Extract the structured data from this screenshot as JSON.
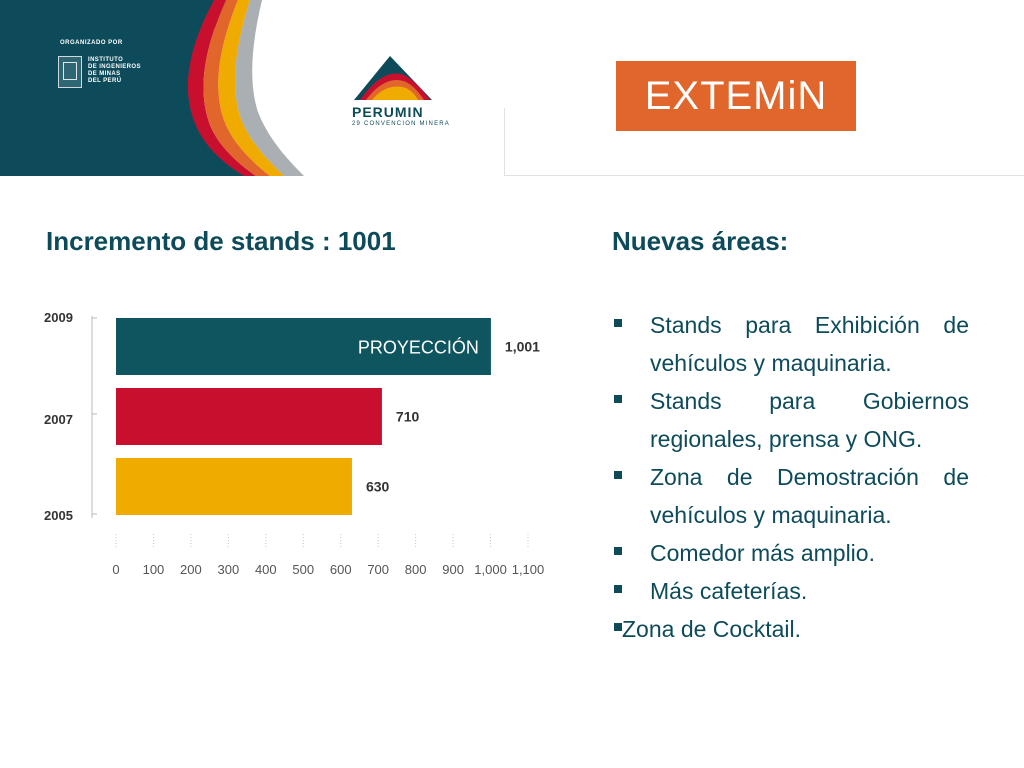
{
  "header": {
    "organizer_label": "ORGANIZADO POR",
    "organizer_lines": [
      "INSTITUTO",
      "DE INGENIEROS",
      "DE MINAS",
      "DEL PERÚ"
    ],
    "perumin_name": "PERUMIN",
    "perumin_subtitle": "29 CONVENCION MINERA",
    "extemin_logo": "EXTEMiN",
    "colors": {
      "teal": "#0e4b5a",
      "orange": "#e0662c"
    }
  },
  "left": {
    "heading": "Incremento de stands : 1001"
  },
  "right": {
    "heading": "Nuevas áreas:",
    "bullets": [
      " Stands para Exhibición de vehículos y maquinaria.",
      " Stands para Gobiernos regionales, prensa y ONG.",
      " Zona de Demostración de vehículos y maquinaria.",
      " Comedor más amplio.",
      " Más cafeterías.",
      "Zona de Cocktail."
    ]
  },
  "chart_data": {
    "type": "bar",
    "orientation": "horizontal",
    "categories": [
      "2009",
      "2007",
      "2005"
    ],
    "values": [
      1001,
      710,
      630
    ],
    "value_labels": [
      "1,001",
      "710",
      "630"
    ],
    "bar_colors": [
      "#0e5560",
      "#c8102e",
      "#f0ab00"
    ],
    "annotation": {
      "category": "2009",
      "text": "PROYECCIÓN"
    },
    "xlim": [
      0,
      1100
    ],
    "x_ticks": [
      0,
      100,
      200,
      300,
      400,
      500,
      600,
      700,
      800,
      900,
      1000,
      1100
    ],
    "x_tick_labels": [
      "0",
      "100",
      "200",
      "300",
      "400",
      "500",
      "600",
      "700",
      "800",
      "900",
      "1,000",
      "1,100"
    ],
    "grid": true
  }
}
